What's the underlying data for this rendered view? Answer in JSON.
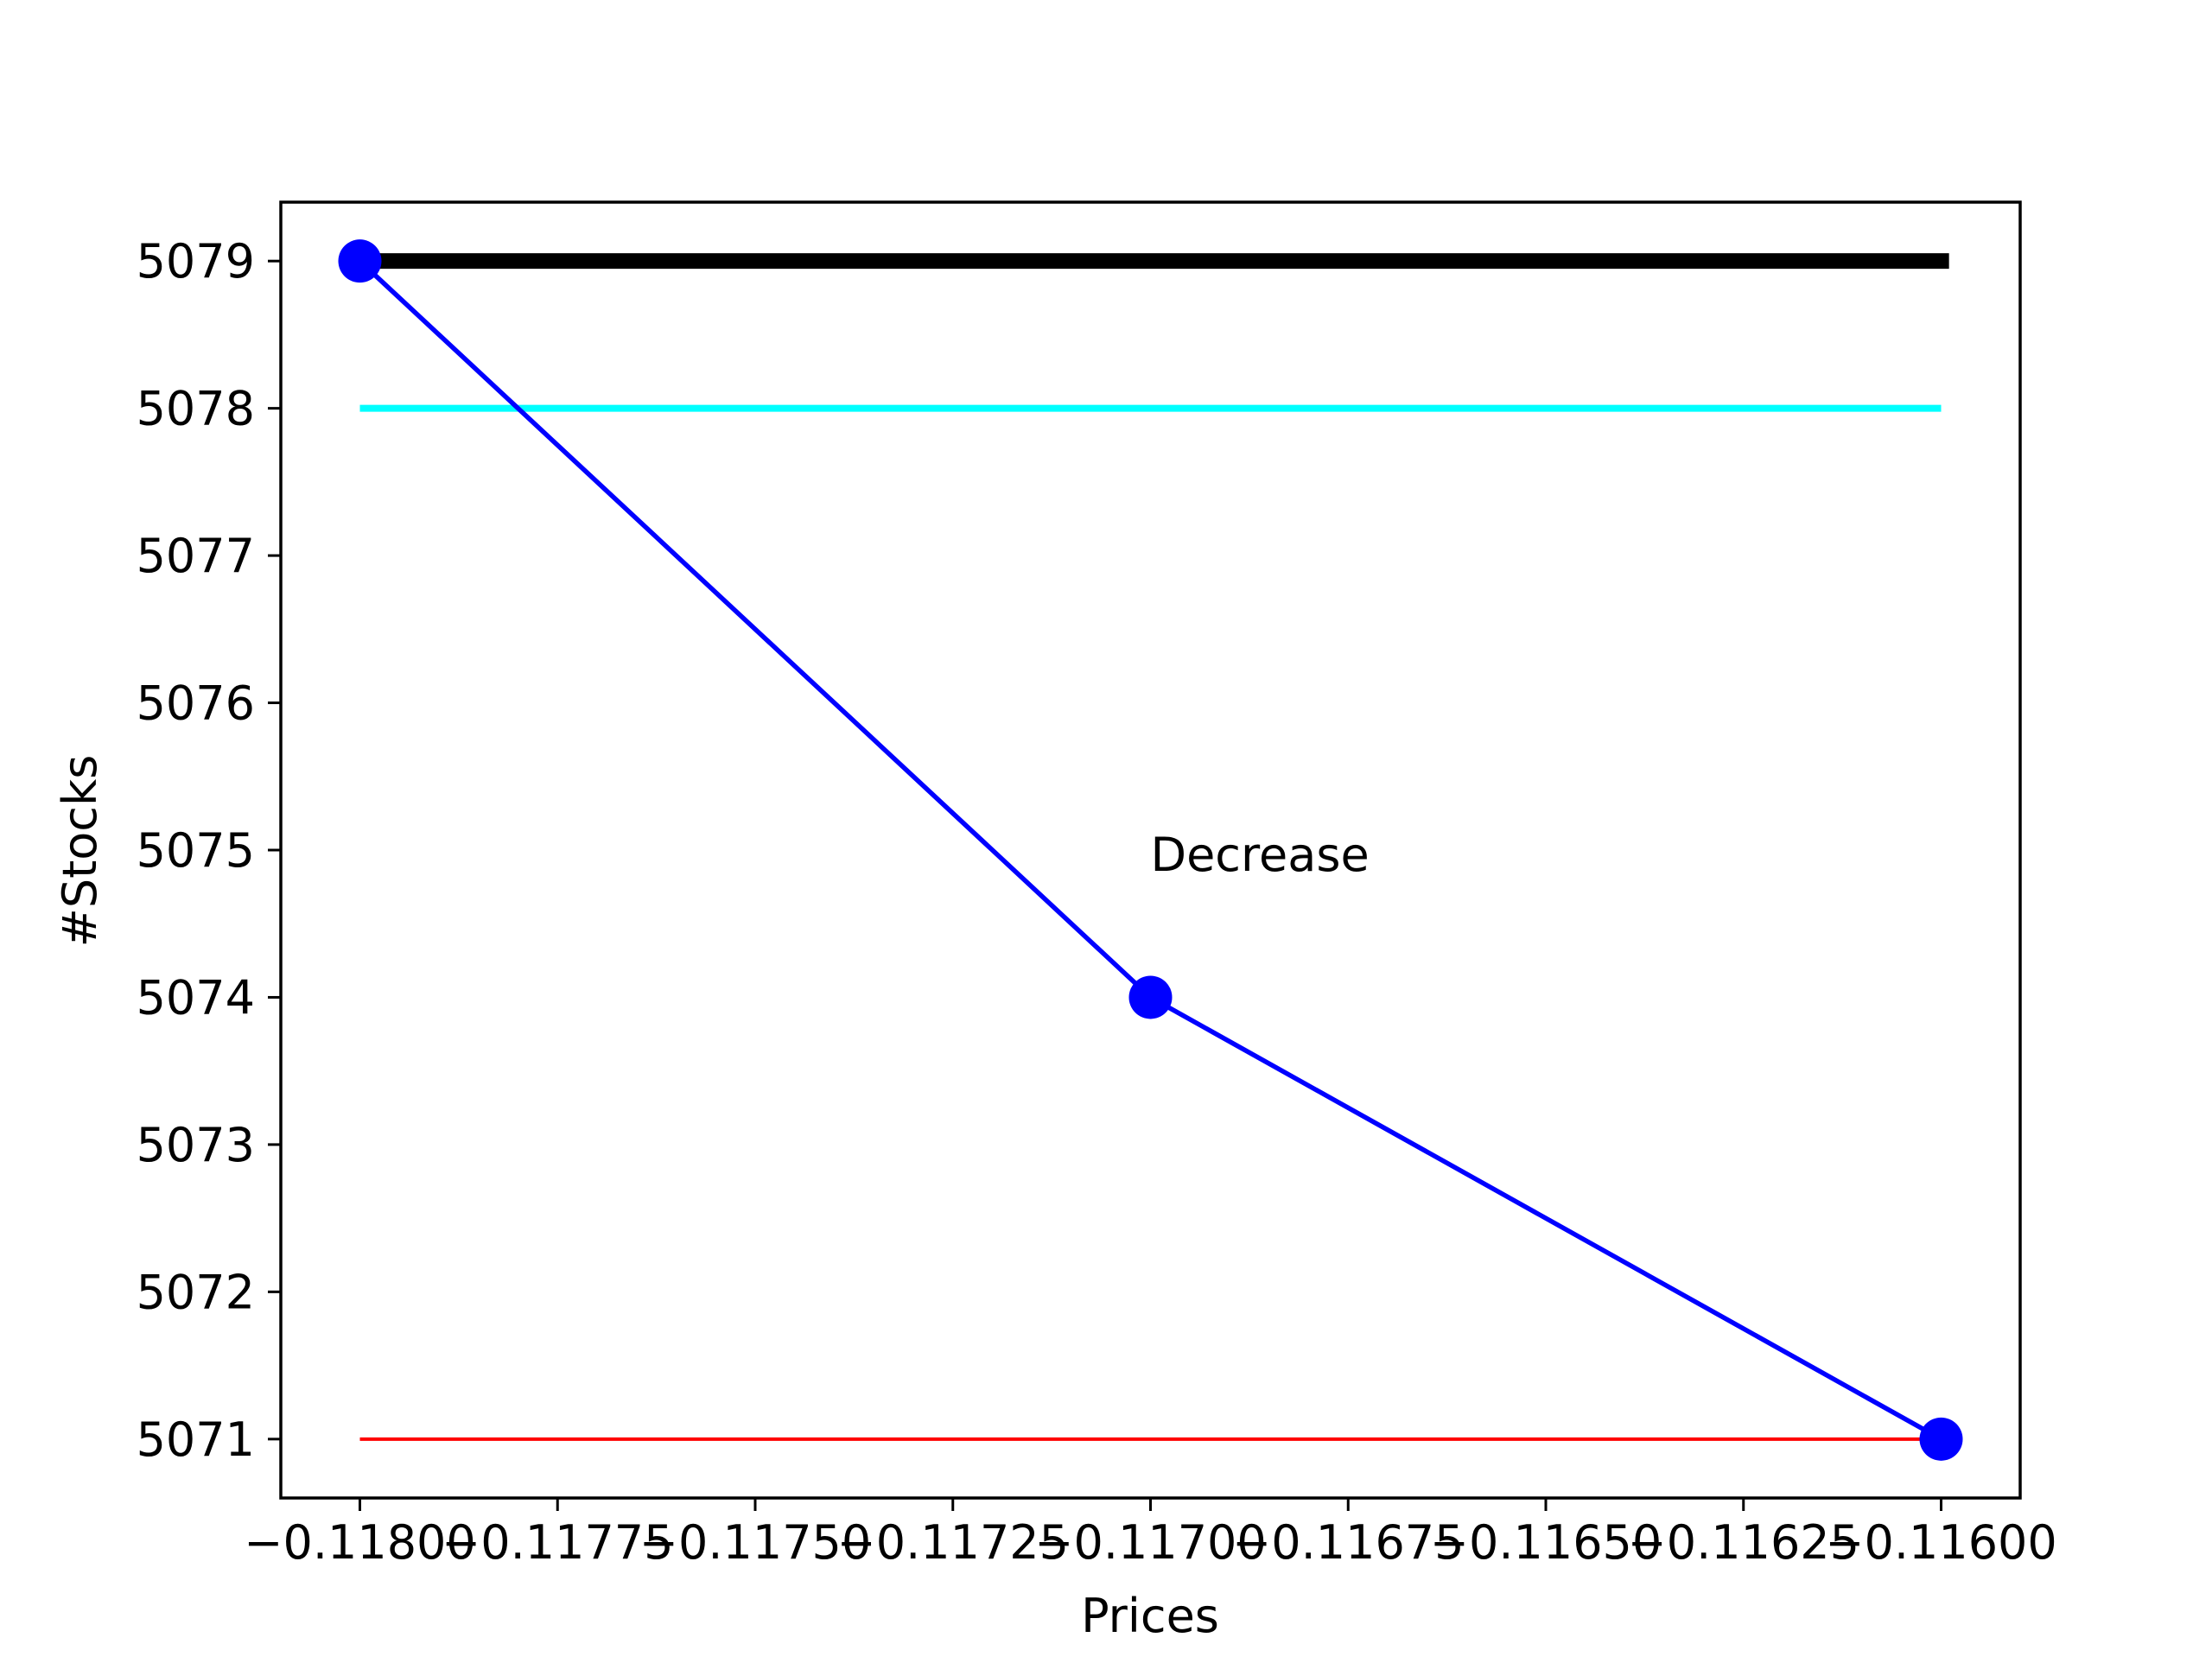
{
  "chart_data": {
    "type": "line",
    "xlabel": "Prices",
    "ylabel": "#Stocks",
    "xlim": [
      -0.1181,
      -0.1159
    ],
    "ylim": [
      5070.6,
      5079.4
    ],
    "xticks": [
      -0.118,
      -0.11775,
      -0.1175,
      -0.11725,
      -0.117,
      -0.11675,
      -0.1165,
      -0.11625,
      -0.116
    ],
    "xtick_labels": [
      "−0.11800",
      "−0.11775",
      "−0.11750",
      "−0.11725",
      "−0.11700",
      "−0.11675",
      "−0.11650",
      "−0.11625",
      "−0.11600"
    ],
    "yticks": [
      5071,
      5072,
      5073,
      5074,
      5075,
      5076,
      5077,
      5078,
      5079
    ],
    "ytick_labels": [
      "5071",
      "5072",
      "5073",
      "5074",
      "5075",
      "5076",
      "5077",
      "5078",
      "5079"
    ],
    "grid": false,
    "series": [
      {
        "points": [
          [
            -0.118,
            5079
          ],
          [
            -0.117,
            5074
          ],
          [
            -0.116,
            5071
          ]
        ],
        "color": "#0000ff",
        "style": "line-with-markers"
      }
    ],
    "hlines": [
      {
        "y": 5079,
        "x_start": -0.118,
        "x_end": -0.11599,
        "color": "#000000",
        "style": "thick"
      },
      {
        "y": 5078,
        "x_start": -0.118,
        "x_end": -0.116,
        "color": "#00ffff",
        "style": "medium"
      },
      {
        "y": 5071,
        "x_start": -0.118,
        "x_end": -0.116,
        "color": "#ff0000",
        "style": "thin"
      }
    ],
    "annotations": [
      {
        "text": "Decrease",
        "x": -0.117,
        "y": 5074.8
      }
    ]
  }
}
